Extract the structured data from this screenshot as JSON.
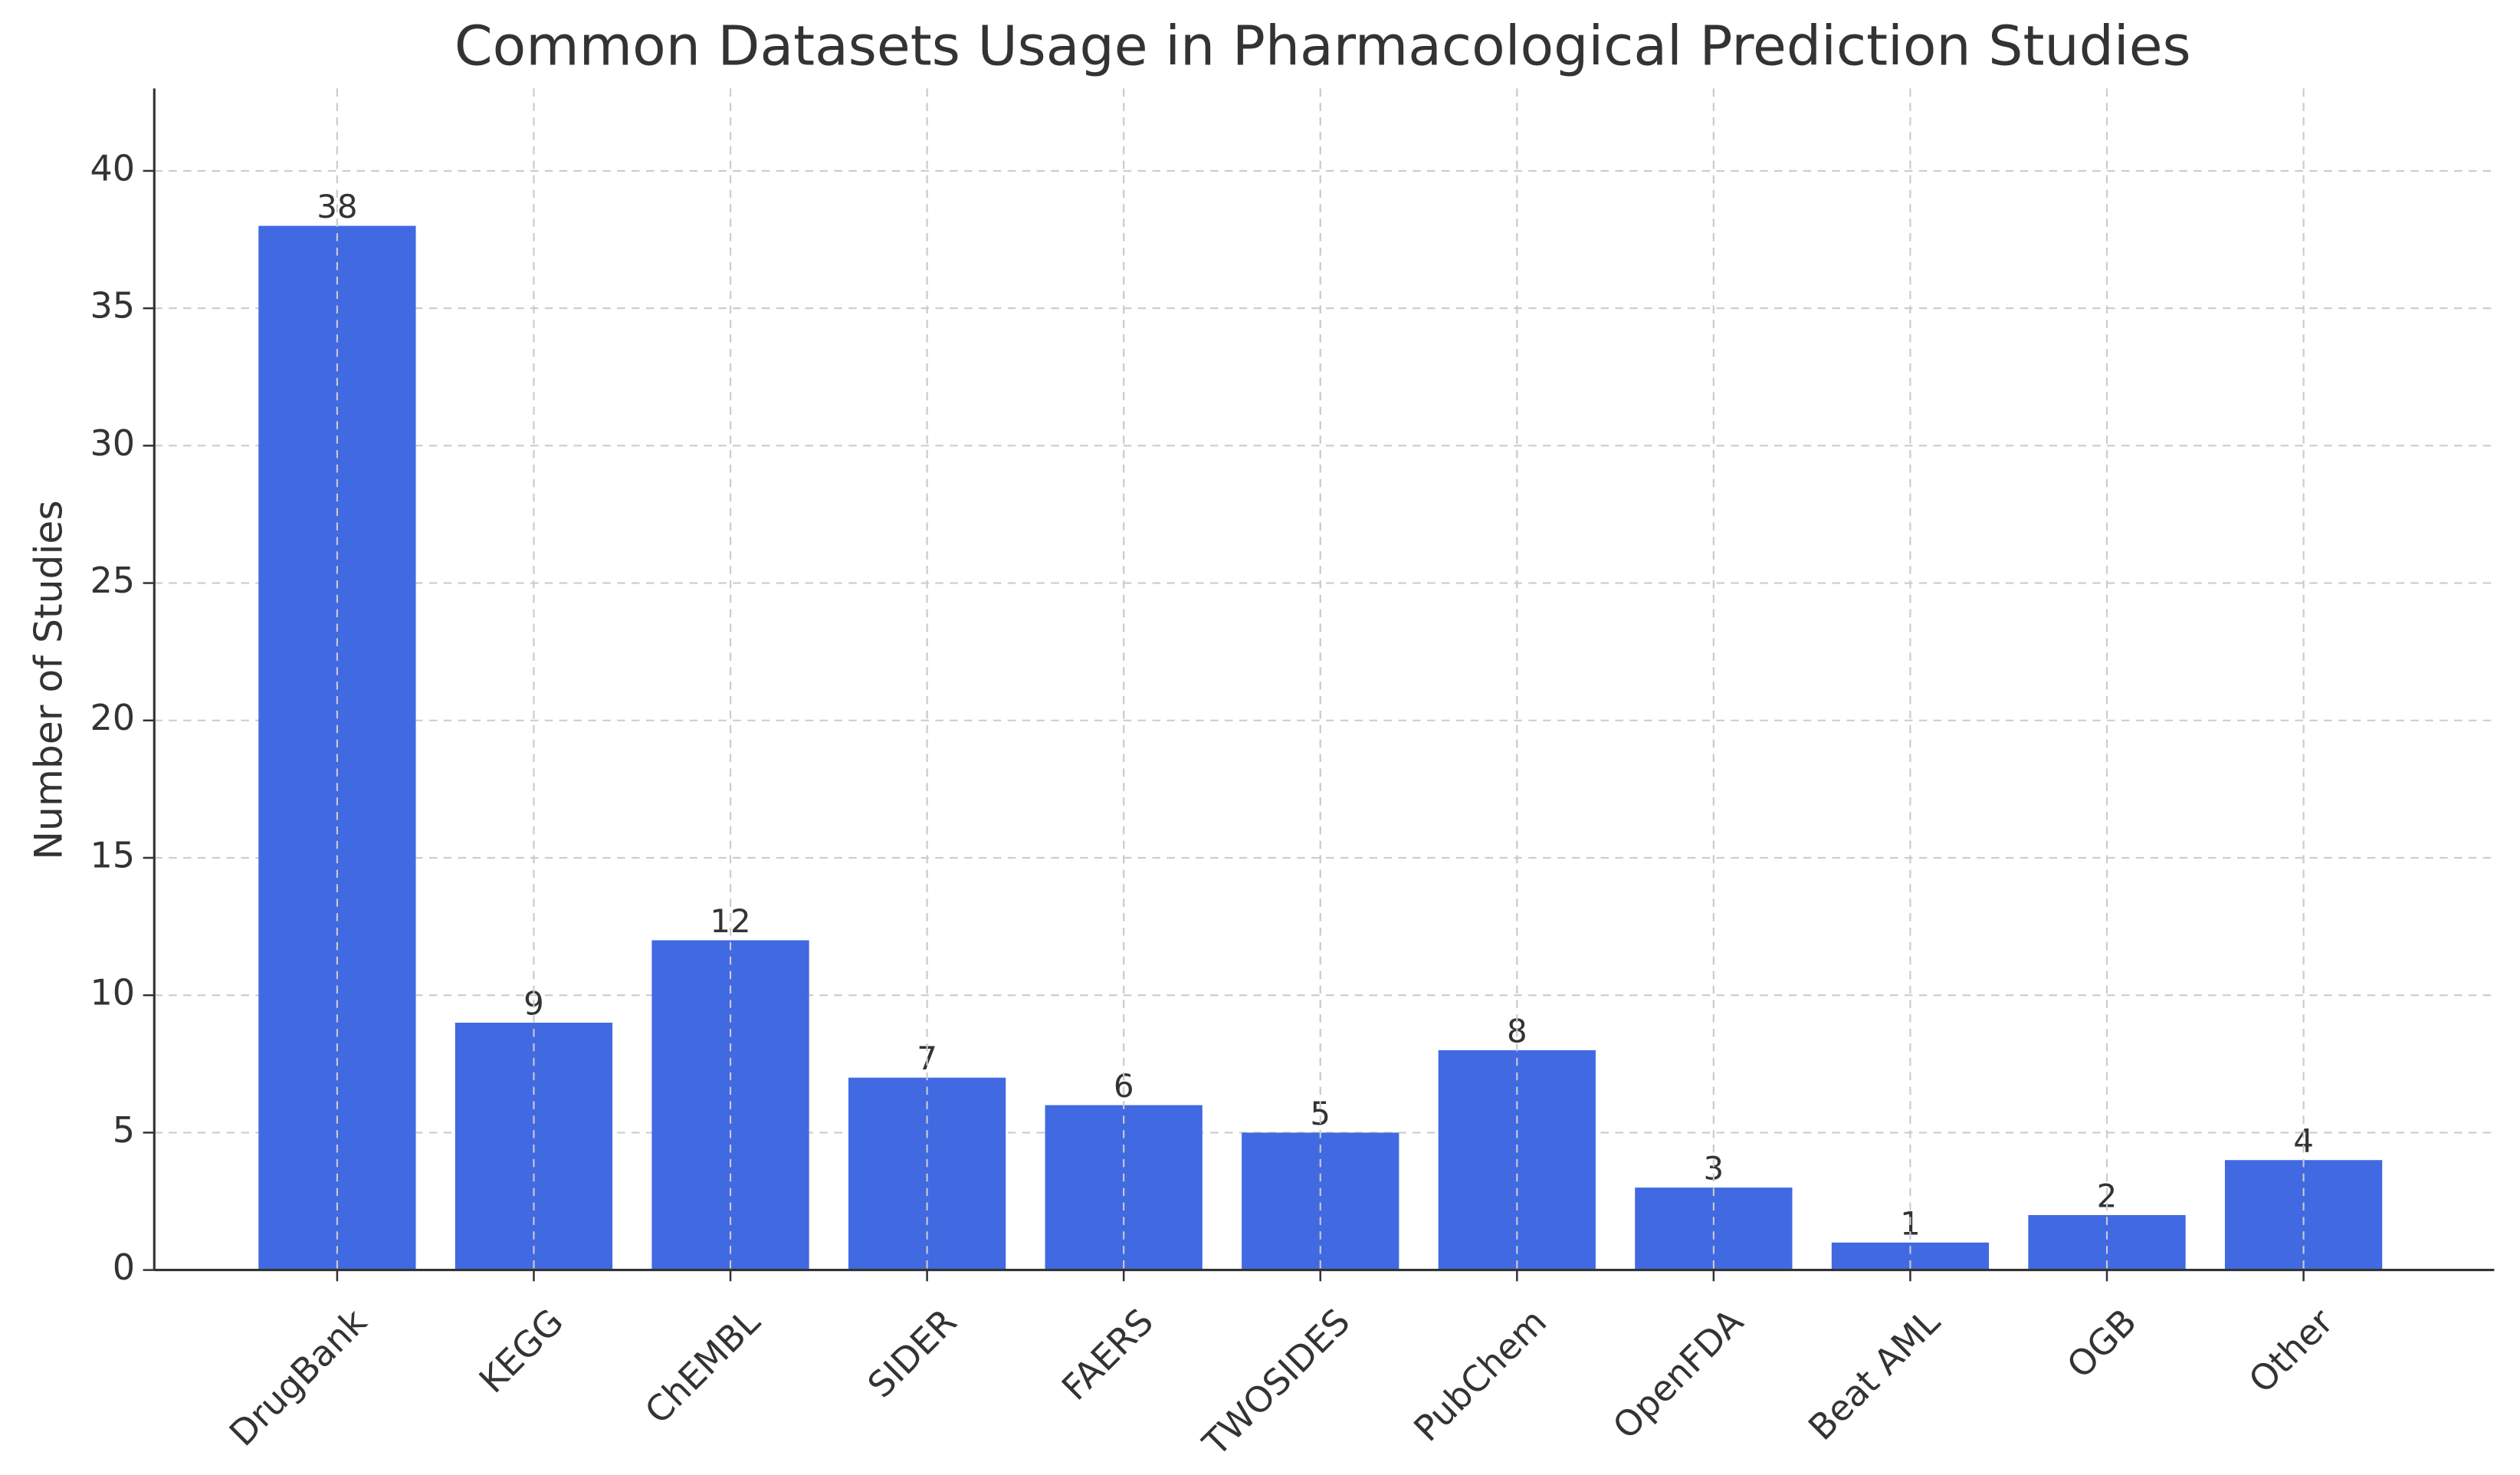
{
  "chart_data": {
    "type": "bar",
    "title": "Common Datasets Usage in Pharmacological Prediction Studies",
    "y_label": "Number of Studies",
    "categories": [
      "DrugBank",
      "KEGG",
      "ChEMBL",
      "SIDER",
      "FAERS",
      "TWOSIDES",
      "PubChem",
      "OpenFDA",
      "Beat AML",
      "OGB",
      "Other"
    ],
    "values": [
      38,
      9,
      12,
      7,
      6,
      5,
      8,
      3,
      1,
      2,
      4
    ],
    "color": "#4169e1",
    "ylim": [
      0,
      43
    ],
    "yticks": [
      0,
      5,
      10,
      15,
      20,
      25,
      30,
      35,
      40
    ],
    "grid": true
  }
}
